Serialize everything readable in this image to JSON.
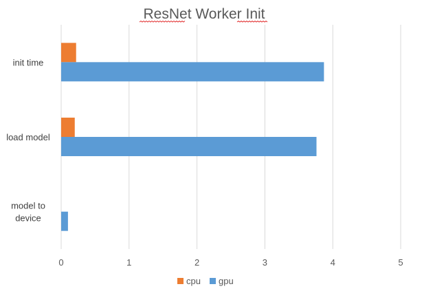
{
  "chart_data": {
    "type": "bar",
    "orientation": "horizontal",
    "title": "ResNet Worker Init",
    "xlabel": "",
    "ylabel": "",
    "categories": [
      "init time",
      "load model",
      "model to device"
    ],
    "category_lines": [
      [
        "init time"
      ],
      [
        "load model"
      ],
      [
        "model to",
        "device"
      ]
    ],
    "series": [
      {
        "name": "cpu",
        "color": "#ed7d31",
        "values": [
          0.22,
          0.2,
          0
        ]
      },
      {
        "name": "gpu",
        "color": "#5b9bd5",
        "values": [
          3.87,
          3.76,
          0.1
        ]
      }
    ],
    "xlim": [
      0,
      5
    ],
    "x_ticks": [
      "0",
      "1",
      "2",
      "3",
      "4",
      "5"
    ],
    "grid": "vertical",
    "legend_position": "bottom"
  }
}
